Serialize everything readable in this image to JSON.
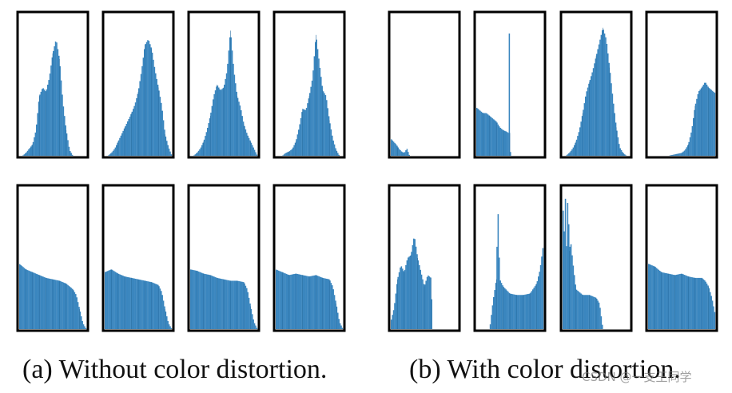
{
  "figure": {
    "bar_color": "#3a86bf",
    "bar_edge": "#2a6fa3",
    "frame_color": "#000000"
  },
  "captions": {
    "a": "(a) Without color distortion.",
    "b": "(b) With color distortion."
  },
  "watermark": "CSDN @一支王同学",
  "chart_data": [
    {
      "type": "area",
      "group": "a",
      "row": 1,
      "col": 1,
      "x": [
        0,
        0.05,
        0.1,
        0.15,
        0.2,
        0.25,
        0.3,
        0.35,
        0.4,
        0.45,
        0.5,
        0.55,
        0.6,
        0.65,
        0.7,
        0.75,
        0.8,
        0.85,
        0.9,
        0.95,
        1
      ],
      "values": [
        0,
        0,
        0.02,
        0.05,
        0.08,
        0.18,
        0.42,
        0.48,
        0.45,
        0.55,
        0.72,
        0.82,
        0.68,
        0.38,
        0.18,
        0.04,
        0,
        0,
        0,
        0,
        0
      ],
      "ylim": [
        0,
        1
      ]
    },
    {
      "type": "area",
      "group": "a",
      "row": 1,
      "col": 2,
      "x": [
        0,
        0.05,
        0.1,
        0.15,
        0.2,
        0.25,
        0.3,
        0.35,
        0.4,
        0.45,
        0.5,
        0.55,
        0.6,
        0.65,
        0.7,
        0.75,
        0.8,
        0.85,
        0.9,
        0.95,
        1
      ],
      "values": [
        0,
        0,
        0.02,
        0.05,
        0.1,
        0.15,
        0.2,
        0.25,
        0.3,
        0.36,
        0.45,
        0.6,
        0.78,
        0.82,
        0.75,
        0.6,
        0.48,
        0.35,
        0.15,
        0.06,
        0
      ],
      "ylim": [
        0,
        1
      ]
    },
    {
      "type": "area",
      "group": "a",
      "row": 1,
      "col": 3,
      "x": [
        0,
        0.05,
        0.1,
        0.15,
        0.2,
        0.25,
        0.3,
        0.35,
        0.4,
        0.45,
        0.5,
        0.55,
        0.6,
        0.65,
        0.7,
        0.75,
        0.8,
        0.85,
        0.9,
        0.95,
        1
      ],
      "values": [
        0,
        0,
        0.02,
        0.05,
        0.1,
        0.18,
        0.28,
        0.42,
        0.5,
        0.46,
        0.48,
        0.6,
        0.88,
        0.6,
        0.42,
        0.34,
        0.22,
        0.15,
        0.1,
        0.05,
        0
      ],
      "ylim": [
        0,
        1
      ]
    },
    {
      "type": "area",
      "group": "a",
      "row": 1,
      "col": 4,
      "x": [
        0,
        0.05,
        0.1,
        0.15,
        0.2,
        0.25,
        0.3,
        0.35,
        0.4,
        0.45,
        0.5,
        0.55,
        0.6,
        0.65,
        0.7,
        0.75,
        0.8,
        0.85,
        0.9,
        0.95,
        1
      ],
      "values": [
        0,
        0,
        0,
        0.02,
        0.03,
        0.05,
        0.1,
        0.2,
        0.33,
        0.32,
        0.42,
        0.55,
        0.85,
        0.65,
        0.46,
        0.42,
        0.25,
        0.12,
        0.04,
        0,
        0
      ],
      "ylim": [
        0,
        1
      ]
    },
    {
      "type": "area",
      "group": "a",
      "row": 2,
      "col": 1,
      "x": [
        0,
        0.1,
        0.2,
        0.3,
        0.4,
        0.5,
        0.6,
        0.7,
        0.8,
        0.85,
        0.9,
        0.95,
        1
      ],
      "values": [
        0.46,
        0.42,
        0.4,
        0.38,
        0.36,
        0.35,
        0.34,
        0.32,
        0.28,
        0.24,
        0.14,
        0.04,
        0
      ],
      "ylim": [
        0,
        1
      ]
    },
    {
      "type": "area",
      "group": "a",
      "row": 2,
      "col": 2,
      "x": [
        0,
        0.1,
        0.2,
        0.3,
        0.4,
        0.5,
        0.6,
        0.7,
        0.8,
        0.85,
        0.9,
        0.95,
        1
      ],
      "values": [
        0.4,
        0.42,
        0.39,
        0.37,
        0.36,
        0.35,
        0.34,
        0.33,
        0.31,
        0.26,
        0.14,
        0.04,
        0
      ],
      "ylim": [
        0,
        1
      ]
    },
    {
      "type": "area",
      "group": "a",
      "row": 2,
      "col": 3,
      "x": [
        0,
        0.1,
        0.2,
        0.3,
        0.4,
        0.5,
        0.6,
        0.7,
        0.8,
        0.85,
        0.9,
        0.95,
        1
      ],
      "values": [
        0.42,
        0.41,
        0.39,
        0.38,
        0.36,
        0.35,
        0.34,
        0.34,
        0.33,
        0.28,
        0.16,
        0.05,
        0
      ],
      "ylim": [
        0,
        1
      ]
    },
    {
      "type": "area",
      "group": "a",
      "row": 2,
      "col": 4,
      "x": [
        0,
        0.1,
        0.2,
        0.3,
        0.4,
        0.5,
        0.6,
        0.7,
        0.8,
        0.85,
        0.9,
        0.95,
        1
      ],
      "values": [
        0.42,
        0.4,
        0.38,
        0.39,
        0.38,
        0.37,
        0.38,
        0.36,
        0.35,
        0.3,
        0.18,
        0.05,
        0
      ],
      "ylim": [
        0,
        1
      ]
    },
    {
      "type": "area",
      "group": "b",
      "row": 1,
      "col": 1,
      "x": [
        0,
        0.04,
        0.08,
        0.12,
        0.16,
        0.2,
        0.24,
        0.28,
        0.3,
        1
      ],
      "values": [
        0.12,
        0.1,
        0.08,
        0.05,
        0.03,
        0.02,
        0.05,
        0,
        0,
        0
      ],
      "ylim": [
        0,
        1
      ]
    },
    {
      "type": "area",
      "group": "b",
      "row": 1,
      "col": 2,
      "x": [
        0,
        0.05,
        0.1,
        0.15,
        0.2,
        0.25,
        0.3,
        0.35,
        0.4,
        0.45,
        0.48,
        0.49,
        0.5,
        0.51,
        0.52,
        1
      ],
      "values": [
        0.34,
        0.32,
        0.3,
        0.3,
        0.28,
        0.26,
        0.24,
        0.2,
        0.18,
        0.17,
        0.16,
        1,
        0.16,
        0,
        0,
        0
      ],
      "ylim": [
        0,
        1
      ]
    },
    {
      "type": "area",
      "group": "b",
      "row": 1,
      "col": 3,
      "x": [
        0,
        0.05,
        0.1,
        0.15,
        0.2,
        0.25,
        0.3,
        0.35,
        0.4,
        0.45,
        0.5,
        0.55,
        0.6,
        0.65,
        0.7,
        0.75,
        0.8,
        0.85,
        0.9,
        0.95,
        1
      ],
      "values": [
        0,
        0,
        0.02,
        0.05,
        0.1,
        0.18,
        0.3,
        0.44,
        0.52,
        0.6,
        0.7,
        0.8,
        0.9,
        0.82,
        0.62,
        0.4,
        0.2,
        0.06,
        0.02,
        0,
        0
      ],
      "ylim": [
        0,
        1
      ]
    },
    {
      "type": "area",
      "group": "b",
      "row": 1,
      "col": 4,
      "x": [
        0,
        0.1,
        0.2,
        0.3,
        0.4,
        0.5,
        0.55,
        0.6,
        0.65,
        0.7,
        0.75,
        0.8,
        0.85,
        0.9,
        0.95,
        1
      ],
      "values": [
        0,
        0,
        0,
        0,
        0.01,
        0.02,
        0.04,
        0.08,
        0.18,
        0.35,
        0.45,
        0.48,
        0.52,
        0.48,
        0.46,
        0.44
      ],
      "ylim": [
        0,
        1
      ]
    },
    {
      "type": "area",
      "group": "b",
      "row": 2,
      "col": 1,
      "x": [
        0,
        0.05,
        0.1,
        0.15,
        0.2,
        0.25,
        0.3,
        0.35,
        0.4,
        0.45,
        0.5,
        0.55,
        0.6,
        0.62,
        0.65,
        1
      ],
      "values": [
        0.05,
        0.15,
        0.35,
        0.45,
        0.4,
        0.5,
        0.52,
        0.66,
        0.5,
        0.4,
        0.3,
        0.38,
        0.36,
        0,
        0,
        0
      ],
      "ylim": [
        0,
        1
      ]
    },
    {
      "type": "area",
      "group": "b",
      "row": 2,
      "col": 2,
      "x": [
        0,
        0.2,
        0.25,
        0.3,
        0.32,
        0.35,
        0.4,
        0.5,
        0.6,
        0.7,
        0.8,
        0.9,
        0.95,
        1
      ],
      "values": [
        0,
        0,
        0.2,
        0.35,
        0.9,
        0.35,
        0.3,
        0.25,
        0.24,
        0.24,
        0.25,
        0.32,
        0.42,
        0.6
      ],
      "ylim": [
        0,
        1
      ]
    },
    {
      "type": "area",
      "group": "b",
      "row": 2,
      "col": 3,
      "x": [
        0,
        0.02,
        0.04,
        0.06,
        0.08,
        0.1,
        0.12,
        0.15,
        0.2,
        0.3,
        0.4,
        0.5,
        0.55,
        0.6,
        1
      ],
      "values": [
        1,
        0.6,
        0.95,
        0.55,
        1,
        0.55,
        0.62,
        0.48,
        0.28,
        0.24,
        0.24,
        0.22,
        0.18,
        0,
        0
      ],
      "ylim": [
        0,
        1
      ]
    },
    {
      "type": "area",
      "group": "b",
      "row": 2,
      "col": 4,
      "x": [
        0,
        0.1,
        0.2,
        0.3,
        0.4,
        0.5,
        0.6,
        0.7,
        0.8,
        0.85,
        0.9,
        0.95,
        1
      ],
      "values": [
        0.46,
        0.44,
        0.4,
        0.39,
        0.38,
        0.39,
        0.37,
        0.36,
        0.36,
        0.34,
        0.3,
        0.22,
        0.1
      ],
      "ylim": [
        0,
        1
      ]
    }
  ]
}
